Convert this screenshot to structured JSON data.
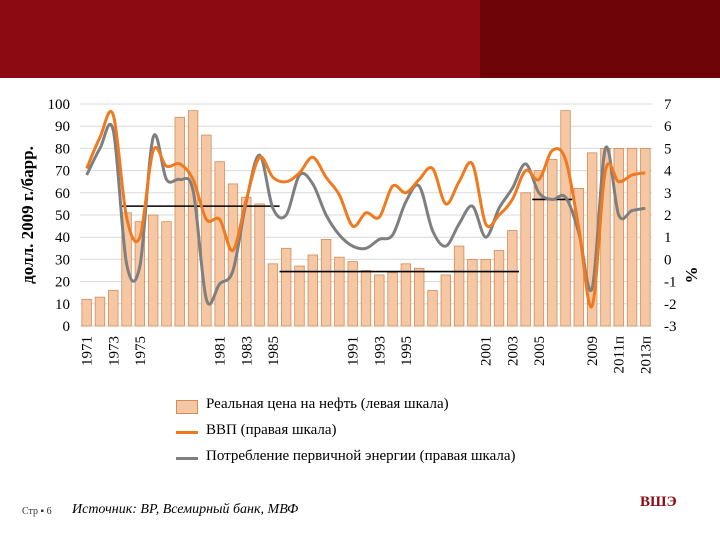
{
  "chart_data": {
    "type": "bar+line",
    "categories": [
      "1971",
      "1972",
      "1973",
      "1974",
      "1975",
      "1976",
      "1977",
      "1978",
      "1979",
      "1980",
      "1981",
      "1982",
      "1983",
      "1984",
      "1985",
      "1986",
      "1987",
      "1988",
      "1989",
      "1990",
      "1991",
      "1992",
      "1993",
      "1994",
      "1995",
      "1996",
      "1997",
      "1998",
      "1999",
      "2000",
      "2001",
      "2002",
      "2003",
      "2004",
      "2005",
      "2006",
      "2007",
      "2008",
      "2009",
      "2010",
      "2011п",
      "2012п",
      "2013п"
    ],
    "x_tick_labels": [
      {
        "index": 0,
        "text": "1971"
      },
      {
        "index": 2,
        "text": "1973"
      },
      {
        "index": 4,
        "text": "1975"
      },
      {
        "index": 10,
        "text": "1981"
      },
      {
        "index": 12,
        "text": "1983"
      },
      {
        "index": 14,
        "text": "1985"
      },
      {
        "index": 20,
        "text": "1991"
      },
      {
        "index": 22,
        "text": "1993"
      },
      {
        "index": 24,
        "text": "1995"
      },
      {
        "index": 30,
        "text": "2001"
      },
      {
        "index": 32,
        "text": "2003"
      },
      {
        "index": 34,
        "text": "2005"
      },
      {
        "index": 38,
        "text": "2009"
      },
      {
        "index": 40,
        "text": "2011п"
      },
      {
        "index": 42,
        "text": "2013п"
      }
    ],
    "y_left": {
      "label": "долл. 2009 г./барр.",
      "min": 0,
      "max": 100,
      "ticks": [
        0,
        10,
        20,
        30,
        40,
        50,
        60,
        70,
        80,
        90,
        100
      ]
    },
    "y_right": {
      "label": "%",
      "min": -3,
      "max": 7,
      "ticks": [
        -3,
        -2,
        -1,
        0,
        1,
        2,
        3,
        4,
        5,
        6,
        7
      ]
    },
    "series": [
      {
        "name": "Реальная цена на нефть (левая шкала)",
        "kind": "bar",
        "axis": "left",
        "color": "#f5c8a3",
        "values": [
          12,
          13,
          16,
          51,
          47,
          50,
          47,
          94,
          97,
          86,
          74,
          64,
          58,
          55,
          28,
          35,
          27,
          32,
          39,
          31,
          29,
          25,
          23,
          24,
          28,
          26,
          16,
          23,
          36,
          30,
          30,
          34,
          43,
          60,
          70,
          75,
          97,
          62,
          78,
          80,
          80,
          80,
          80
        ]
      },
      {
        "name": "ВВП (правая шкала)",
        "kind": "line",
        "axis": "right",
        "color": "#f07a1f",
        "values": [
          4.1,
          5.5,
          6.5,
          1.9,
          1.0,
          4.9,
          4.2,
          4.3,
          3.6,
          1.8,
          1.8,
          0.4,
          2.7,
          4.6,
          3.7,
          3.5,
          3.9,
          4.6,
          3.7,
          2.9,
          1.5,
          2.1,
          1.9,
          3.3,
          3.0,
          3.6,
          4.1,
          2.5,
          3.5,
          4.3,
          1.6,
          2.0,
          2.7,
          4.0,
          3.6,
          4.9,
          4.5,
          1.4,
          -2.1,
          4.0,
          3.5,
          3.8,
          3.9
        ]
      },
      {
        "name": "Потребление первичной энергии (правая шкала)",
        "kind": "line",
        "axis": "right",
        "color": "#7f7f7f",
        "values": [
          3.8,
          5.0,
          5.8,
          -0.2,
          -0.3,
          5.5,
          3.6,
          3.6,
          3.1,
          -1.8,
          -1.1,
          -0.5,
          2.6,
          4.7,
          2.3,
          2.0,
          3.8,
          3.4,
          2.0,
          1.1,
          0.6,
          0.5,
          0.9,
          1.1,
          2.6,
          3.3,
          1.3,
          0.6,
          1.6,
          2.4,
          1.0,
          2.3,
          3.2,
          4.3,
          3.0,
          2.7,
          2.8,
          1.2,
          -1.3,
          5.0,
          2.0,
          2.2,
          2.3
        ]
      }
    ],
    "reference_lines_left": [
      {
        "from_index": 3,
        "to_index": 14,
        "value": 54
      },
      {
        "from_index": 15,
        "to_index": 32,
        "value": 24.5
      },
      {
        "from_index": 34,
        "to_index": 36,
        "value": 57
      }
    ],
    "legend_position": "bottom"
  },
  "footer": {
    "page": "Стр ▪ 6",
    "source": "Источник: BP, Всемирный банк, МВФ",
    "brand": "ВШЭ"
  }
}
